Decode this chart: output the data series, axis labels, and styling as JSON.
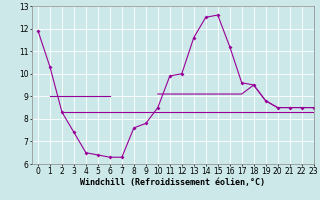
{
  "x": [
    0,
    1,
    2,
    3,
    4,
    5,
    6,
    7,
    8,
    9,
    10,
    11,
    12,
    13,
    14,
    15,
    16,
    17,
    18,
    19,
    20,
    21,
    22,
    23
  ],
  "line_main": [
    11.9,
    10.3,
    8.3,
    7.4,
    6.5,
    6.4,
    6.3,
    6.3,
    7.6,
    7.8,
    8.5,
    9.9,
    10.0,
    11.6,
    12.5,
    12.6,
    11.2,
    9.6,
    9.5,
    8.8,
    8.5,
    8.5,
    8.5,
    8.5
  ],
  "line_flat1": [
    null,
    9.0,
    9.0,
    9.0,
    9.0,
    9.0,
    9.0,
    null,
    null,
    null,
    null,
    null,
    null,
    null,
    null,
    null,
    null,
    null,
    null,
    null,
    null,
    null,
    null,
    null
  ],
  "line_flat2": [
    null,
    null,
    8.3,
    8.3,
    8.3,
    8.3,
    8.3,
    8.3,
    8.3,
    8.3,
    8.3,
    8.3,
    8.3,
    8.3,
    8.3,
    8.3,
    8.3,
    8.3,
    8.3,
    8.3,
    8.3,
    8.3,
    8.3,
    8.3
  ],
  "line_flat3": [
    null,
    null,
    null,
    null,
    null,
    null,
    null,
    null,
    null,
    null,
    9.1,
    9.1,
    9.1,
    9.1,
    9.1,
    9.1,
    9.1,
    9.1,
    9.5,
    8.8,
    8.5,
    8.5,
    8.5,
    8.5
  ],
  "xlim": [
    -0.5,
    23
  ],
  "ylim": [
    6,
    13
  ],
  "yticks": [
    6,
    7,
    8,
    9,
    10,
    11,
    12,
    13
  ],
  "xticks": [
    0,
    1,
    2,
    3,
    4,
    5,
    6,
    7,
    8,
    9,
    10,
    11,
    12,
    13,
    14,
    15,
    16,
    17,
    18,
    19,
    20,
    21,
    22,
    23
  ],
  "xlabel": "Windchill (Refroidissement éolien,°C)",
  "line_color": "#990099",
  "bg_color": "#cce8e8",
  "grid_color": "#ffffff",
  "xlabel_fontsize": 6.0,
  "tick_fontsize": 5.5,
  "marker_size": 2.0,
  "line_width": 0.8
}
